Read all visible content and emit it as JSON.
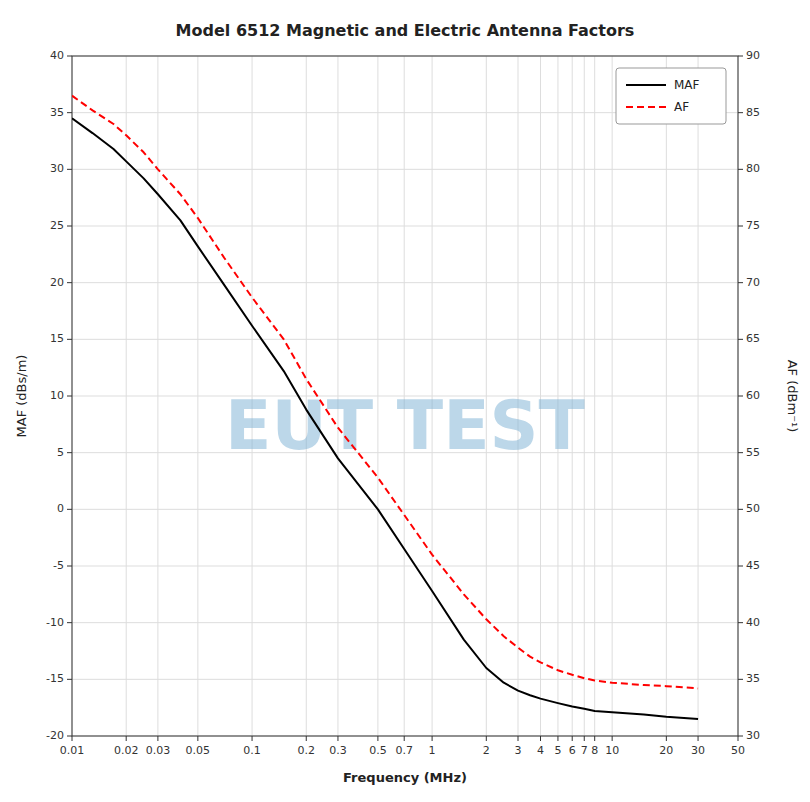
{
  "chart_data": {
    "type": "line",
    "title": "Model 6512 Magnetic and Electric Antenna Factors",
    "xlabel": "Frequency (MHz)",
    "ylabel": "MAF (dBs/m)",
    "y2label": "AF (dBm⁻¹)",
    "log": "x",
    "grid": true,
    "legend": "upper right",
    "xlim": [
      0.01,
      50
    ],
    "xticks": [
      0.01,
      0.02,
      0.03,
      0.05,
      0.1,
      0.2,
      0.3,
      0.5,
      0.7,
      1,
      2,
      3,
      4,
      5,
      6,
      7,
      8,
      10,
      20,
      30,
      50
    ],
    "ylim": [
      -20,
      40
    ],
    "yticks": [
      -20,
      -15,
      -10,
      -5,
      0,
      5,
      10,
      15,
      20,
      25,
      30,
      35,
      40
    ],
    "y2lim": [
      30,
      90
    ],
    "y2ticks": [
      30,
      35,
      40,
      45,
      50,
      55,
      60,
      65,
      70,
      75,
      80,
      85,
      90
    ],
    "x": [
      0.01,
      0.013,
      0.017,
      0.02,
      0.025,
      0.03,
      0.04,
      0.05,
      0.07,
      0.1,
      0.15,
      0.2,
      0.3,
      0.5,
      0.7,
      1.0,
      1.5,
      2.0,
      2.5,
      3.0,
      3.5,
      4.0,
      5.0,
      6.0,
      7.0,
      8.0,
      10.0,
      15.0,
      20.0,
      30.0
    ],
    "series": [
      {
        "name": "MAF",
        "color": "#000000",
        "axis": "y",
        "line_style": "solid",
        "values": [
          34.5,
          33.2,
          31.8,
          30.7,
          29.2,
          27.8,
          25.5,
          23.2,
          19.8,
          16.2,
          12.2,
          8.8,
          4.5,
          0.0,
          -3.5,
          -7.2,
          -11.5,
          -14.0,
          -15.3,
          -16.0,
          -16.4,
          -16.7,
          -17.1,
          -17.4,
          -17.6,
          -17.8,
          -17.9,
          -18.1,
          -18.3,
          -18.5
        ]
      },
      {
        "name": "AF",
        "color": "#ff0000",
        "axis": "y2",
        "line_style": "dashed",
        "values": [
          86.5,
          85.2,
          84.0,
          83.0,
          81.5,
          80.0,
          77.8,
          75.7,
          72.2,
          68.7,
          65.0,
          61.5,
          57.2,
          52.8,
          49.5,
          46.0,
          42.5,
          40.3,
          38.8,
          37.8,
          37.0,
          36.5,
          35.8,
          35.4,
          35.1,
          34.9,
          34.7,
          34.5,
          34.4,
          34.2
        ]
      }
    ],
    "annotations": [
      {
        "text": "EUT TEST",
        "color": "#7ab0d4"
      }
    ]
  }
}
